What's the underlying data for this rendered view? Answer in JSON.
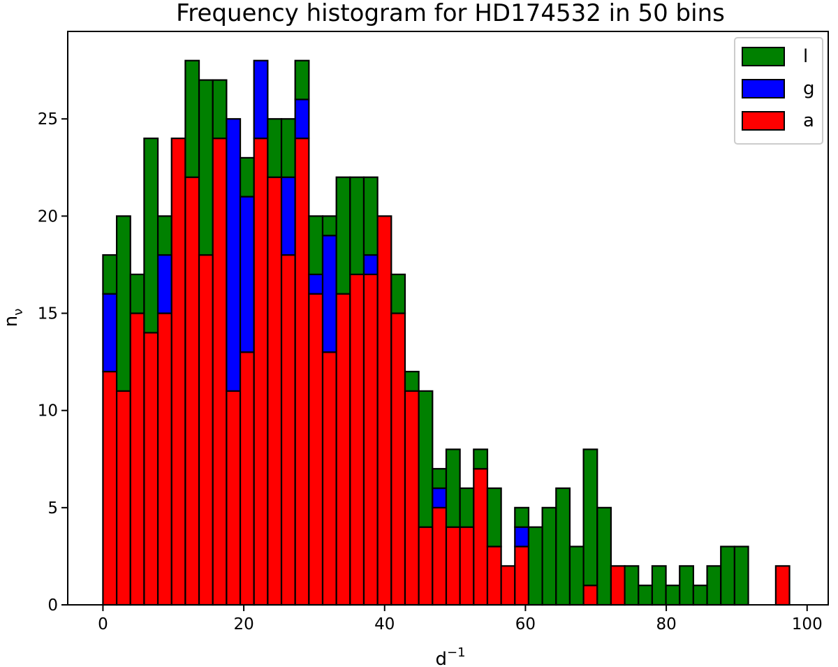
{
  "chart_data": {
    "type": "bar",
    "stacked": true,
    "title": "Frequency histogram for HD174532 in 50 bins",
    "xlabel_base": "d",
    "xlabel_sup": "−1",
    "ylabel_base": "n",
    "ylabel_sub": "ν",
    "xlim": [
      -5,
      103
    ],
    "ylim": [
      0,
      29.5
    ],
    "xticks": [
      0,
      20,
      40,
      60,
      80,
      100
    ],
    "yticks": [
      0,
      5,
      10,
      15,
      20,
      25
    ],
    "bin_start": 0,
    "bin_width": 1.95,
    "grid": false,
    "legend_position": "top-right",
    "series": [
      {
        "name": "a",
        "color": "#ff0000",
        "values": [
          12,
          11,
          15,
          14,
          15,
          24,
          22,
          18,
          24,
          11,
          13,
          24,
          22,
          18,
          24,
          16,
          13,
          16,
          17,
          17,
          20,
          15,
          11,
          4,
          5,
          4,
          4,
          7,
          3,
          2,
          3,
          0,
          0,
          0,
          0,
          1,
          0,
          2,
          0,
          0,
          0,
          0,
          0,
          0,
          0,
          0,
          0,
          0,
          0,
          2
        ]
      },
      {
        "name": "g",
        "color": "#0000ff",
        "values": [
          4,
          0,
          0,
          0,
          3,
          0,
          0,
          0,
          0,
          14,
          8,
          4,
          0,
          4,
          2,
          1,
          6,
          0,
          0,
          1,
          0,
          0,
          0,
          0,
          1,
          0,
          0,
          0,
          0,
          0,
          1,
          0,
          0,
          0,
          0,
          0,
          0,
          0,
          0,
          0,
          0,
          0,
          0,
          0,
          0,
          0,
          0,
          0,
          0,
          0
        ]
      },
      {
        "name": "l",
        "color": "#008000",
        "values": [
          2,
          9,
          2,
          10,
          2,
          0,
          6,
          9,
          3,
          0,
          2,
          0,
          3,
          3,
          2,
          3,
          1,
          6,
          5,
          4,
          0,
          2,
          1,
          7,
          1,
          4,
          2,
          1,
          3,
          0,
          1,
          4,
          5,
          6,
          3,
          7,
          5,
          0,
          2,
          1,
          2,
          1,
          2,
          1,
          2,
          3,
          3,
          0,
          0,
          0
        ]
      }
    ],
    "legend_order": [
      "l",
      "g",
      "a"
    ]
  }
}
